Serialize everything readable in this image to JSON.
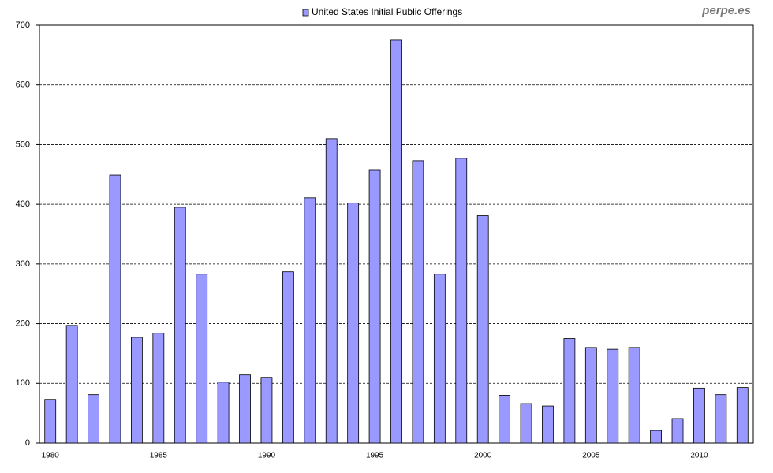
{
  "chart_data": {
    "type": "bar",
    "watermark": "perpe.es",
    "categories": [
      "1980",
      null,
      null,
      null,
      null,
      "1985",
      null,
      null,
      null,
      null,
      "1990",
      null,
      null,
      null,
      null,
      "1995",
      null,
      null,
      null,
      null,
      "2000",
      null,
      null,
      null,
      null,
      "2005",
      null,
      null,
      null,
      null,
      "2010",
      null,
      null
    ],
    "series": [
      {
        "name": "United States Initial Public Offerings",
        "color": "#9999ff",
        "values": [
          73,
          197,
          81,
          449,
          177,
          184,
          395,
          283,
          102,
          114,
          110,
          287,
          411,
          510,
          402,
          457,
          675,
          473,
          283,
          477,
          381,
          80,
          66,
          62,
          175,
          160,
          157,
          160,
          21,
          41,
          92,
          81,
          93
        ]
      }
    ],
    "ylim": [
      0,
      700
    ],
    "yticks": [
      0,
      100,
      200,
      300,
      400,
      500,
      600,
      700
    ],
    "grid": true,
    "legend": "top"
  }
}
